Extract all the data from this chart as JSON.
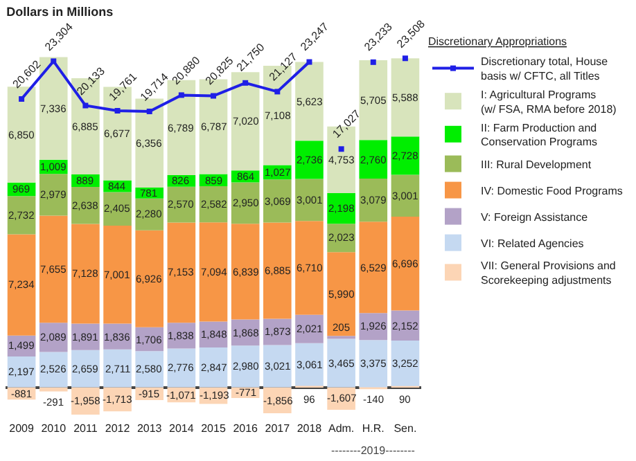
{
  "chart_data": {
    "type": "bar",
    "stacked": true,
    "title": "Dollars in Millions",
    "legend_title": "Discretionary Appropriations",
    "categories": [
      "2009",
      "2010",
      "2011",
      "2012",
      "2013",
      "2014",
      "2015",
      "2016",
      "2017",
      "2018",
      "Adm.",
      "H.R.",
      "Sen."
    ],
    "series": [
      {
        "name": "VII: General Provisions and Scorekeeping adjustments",
        "color": "#fcd5b5",
        "values": [
          -881,
          -291,
          -1958,
          -1713,
          -915,
          -1071,
          -1193,
          -771,
          -1856,
          96,
          -1607,
          -140,
          90
        ],
        "value_labels": [
          "-881",
          "-291",
          "-1,958",
          "-1,713",
          "-915",
          "-1,071",
          "-1,193",
          "-771",
          "-1,856",
          "96",
          "-1,607",
          "-140",
          "90"
        ]
      },
      {
        "name": "VI: Related Agencies",
        "color": "#c5d9f1",
        "values": [
          2197,
          2526,
          2659,
          2711,
          2580,
          2776,
          2847,
          2980,
          3021,
          3061,
          3465,
          3375,
          3252
        ],
        "value_labels": [
          "2,197",
          "2,526",
          "2,659",
          "2,711",
          "2,580",
          "2,776",
          "2,847",
          "2,980",
          "3,021",
          "3,061",
          "3,465",
          "3,375",
          "3,252"
        ]
      },
      {
        "name": "V: Foreign Assistance",
        "color": "#b3a2c7",
        "values": [
          1499,
          2089,
          1891,
          1836,
          1706,
          1838,
          1848,
          1868,
          1873,
          2021,
          205,
          1926,
          2152
        ],
        "value_labels": [
          "1,499",
          "2,089",
          "1,891",
          "1,836",
          "1,706",
          "1,838",
          "1,848",
          "1,868",
          "1,873",
          "2,021",
          "205",
          "1,926",
          "2,152"
        ]
      },
      {
        "name": "IV: Domestic Food Programs",
        "color": "#f79646",
        "values": [
          7234,
          7655,
          7128,
          7001,
          6926,
          7153,
          7094,
          6839,
          6885,
          6710,
          5990,
          6529,
          6696
        ],
        "value_labels": [
          "7,234",
          "7,655",
          "7,128",
          "7,001",
          "6,926",
          "7,153",
          "7,094",
          "6,839",
          "6,885",
          "6,710",
          "5,990",
          "6,529",
          "6,696"
        ]
      },
      {
        "name": "III: Rural Development",
        "color": "#9bbb59",
        "values": [
          2732,
          2979,
          2638,
          2405,
          2280,
          2570,
          2582,
          2950,
          3069,
          3001,
          2023,
          3079,
          3001
        ],
        "value_labels": [
          "2,732",
          "2,979",
          "2,638",
          "2,405",
          "2,280",
          "2,570",
          "2,582",
          "2,950",
          "3,069",
          "3,001",
          "2,023",
          "3,079",
          "3,001"
        ]
      },
      {
        "name": "II: Farm Production and Conservation Programs",
        "color": "#00ee00",
        "values": [
          969,
          1009,
          889,
          844,
          781,
          826,
          859,
          864,
          1027,
          2736,
          2198,
          2760,
          2728
        ],
        "value_labels": [
          "969",
          "1,009",
          "889",
          "844",
          "781",
          "826",
          "859",
          "864",
          "1,027",
          "2,736",
          "2,198",
          "2,760",
          "2,728"
        ]
      },
      {
        "name": "I: Agricultural Programs (w/ FSA, RMA before 2018)",
        "color": "#d8e4bc",
        "values": [
          6850,
          7336,
          6885,
          6677,
          6356,
          6789,
          6787,
          7020,
          7108,
          5623,
          4753,
          5705,
          5588
        ],
        "value_labels": [
          "6,850",
          "7,336",
          "6,885",
          "6,677",
          "6,356",
          "6,789",
          "6,787",
          "7,020",
          "7,108",
          "5,623",
          "4,753",
          "5,705",
          "5,588"
        ]
      },
      {
        "name": "Discretionary total, House basis w/ CFTC, all Titles",
        "type": "line",
        "color": "#1f1fe6",
        "marker": "square",
        "values": [
          20602,
          23304,
          20133,
          19761,
          19714,
          20880,
          20825,
          21750,
          21127,
          23247,
          null,
          null,
          null
        ],
        "value_labels": [
          "20,602",
          "23,304",
          "20,133",
          "19,761",
          "19,714",
          "20,880",
          "20,825",
          "21,750",
          "21,127",
          "23,247",
          null,
          null,
          null
        ]
      },
      {
        "type": "scatter",
        "color": "#1f1fe6",
        "marker": "square",
        "values": [
          null,
          null,
          null,
          null,
          null,
          null,
          null,
          null,
          null,
          null,
          17027,
          23233,
          23508
        ],
        "value_labels": [
          null,
          null,
          null,
          null,
          null,
          null,
          null,
          null,
          null,
          null,
          "17,027",
          "23,233",
          "23,508"
        ]
      }
    ],
    "legend": "right",
    "annotations": [
      "--------2019--------"
    ]
  }
}
